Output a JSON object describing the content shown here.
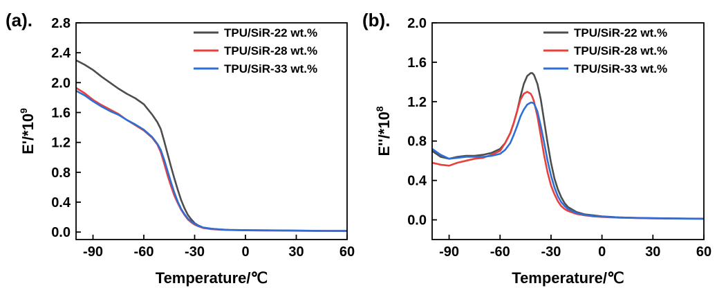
{
  "chart_data": [
    {
      "type": "line",
      "panel_label": "(a).",
      "xlabel": "Temperature/℃",
      "ylabel": "E'/*10",
      "ylabel_exp": "9",
      "xlim": [
        -100,
        60
      ],
      "ylim": [
        -0.1,
        2.8
      ],
      "xticks": [
        -90,
        -60,
        -30,
        0,
        30,
        60
      ],
      "yticks": [
        0.0,
        0.4,
        0.8,
        1.2,
        1.6,
        2.0,
        2.4,
        2.8
      ],
      "xticklabels": [
        "-90",
        "-60",
        "-30",
        "0",
        "30",
        "60"
      ],
      "yticklabels": [
        "0.0",
        "0.4",
        "0.8",
        "1.2",
        "1.6",
        "2.0",
        "2.4",
        "2.8"
      ],
      "legend_position": "top-right",
      "series": [
        {
          "name": "TPU/SiR-22 wt.%",
          "color": "#4d4d4d",
          "x": [
            -100,
            -95,
            -90,
            -85,
            -80,
            -75,
            -70,
            -65,
            -60,
            -55,
            -52,
            -50,
            -48,
            -46,
            -44,
            -42,
            -40,
            -38,
            -36,
            -34,
            -32,
            -30,
            -28,
            -25,
            -20,
            -15,
            -10,
            -5,
            0,
            10,
            20,
            30,
            40,
            50,
            60
          ],
          "y": [
            2.3,
            2.24,
            2.17,
            2.08,
            2.0,
            1.92,
            1.85,
            1.79,
            1.71,
            1.57,
            1.47,
            1.38,
            1.22,
            1.05,
            0.88,
            0.72,
            0.57,
            0.43,
            0.32,
            0.23,
            0.17,
            0.12,
            0.09,
            0.06,
            0.045,
            0.035,
            0.03,
            0.028,
            0.026,
            0.024,
            0.022,
            0.02,
            0.018,
            0.016,
            0.015
          ]
        },
        {
          "name": "TPU/SiR-28 wt.%",
          "color": "#e8413c",
          "x": [
            -100,
            -95,
            -90,
            -85,
            -80,
            -75,
            -70,
            -65,
            -60,
            -55,
            -52,
            -50,
            -48,
            -46,
            -44,
            -42,
            -40,
            -38,
            -36,
            -34,
            -32,
            -30,
            -28,
            -25,
            -20,
            -15,
            -10,
            -5,
            0,
            10,
            20,
            30,
            40,
            50,
            60
          ],
          "y": [
            1.93,
            1.86,
            1.77,
            1.7,
            1.64,
            1.58,
            1.5,
            1.43,
            1.36,
            1.26,
            1.17,
            1.07,
            0.92,
            0.76,
            0.62,
            0.49,
            0.39,
            0.3,
            0.23,
            0.17,
            0.13,
            0.1,
            0.08,
            0.055,
            0.04,
            0.032,
            0.028,
            0.025,
            0.023,
            0.021,
            0.02,
            0.018,
            0.016,
            0.015,
            0.014
          ]
        },
        {
          "name": "TPU/SiR-33 wt.%",
          "color": "#2e6fd6",
          "x": [
            -100,
            -95,
            -90,
            -85,
            -80,
            -75,
            -70,
            -65,
            -60,
            -55,
            -52,
            -50,
            -48,
            -46,
            -44,
            -42,
            -40,
            -38,
            -36,
            -34,
            -32,
            -30,
            -28,
            -25,
            -20,
            -15,
            -10,
            -5,
            0,
            10,
            20,
            30,
            40,
            50,
            60
          ],
          "y": [
            1.89,
            1.83,
            1.75,
            1.68,
            1.62,
            1.57,
            1.5,
            1.44,
            1.37,
            1.27,
            1.18,
            1.1,
            0.97,
            0.82,
            0.67,
            0.53,
            0.41,
            0.31,
            0.24,
            0.18,
            0.14,
            0.11,
            0.085,
            0.06,
            0.045,
            0.035,
            0.03,
            0.027,
            0.024,
            0.022,
            0.02,
            0.019,
            0.017,
            0.016,
            0.015
          ]
        }
      ]
    },
    {
      "type": "line",
      "panel_label": "(b).",
      "xlabel": "Temperature/℃",
      "ylabel": "E''/*10",
      "ylabel_exp": "8",
      "xlim": [
        -100,
        60
      ],
      "ylim": [
        -0.2,
        2.0
      ],
      "xticks": [
        -90,
        -60,
        -30,
        0,
        30,
        60
      ],
      "yticks": [
        0.0,
        0.4,
        0.8,
        1.2,
        1.6,
        2.0
      ],
      "xticklabels": [
        "-90",
        "-60",
        "-30",
        "0",
        "30",
        "60"
      ],
      "yticklabels": [
        "0.0",
        "0.4",
        "0.8",
        "1.2",
        "1.6",
        "2.0"
      ],
      "legend_position": "top-right",
      "series": [
        {
          "name": "TPU/SiR-22 wt.%",
          "color": "#4d4d4d",
          "x": [
            -100,
            -95,
            -90,
            -85,
            -80,
            -75,
            -70,
            -65,
            -60,
            -57,
            -54,
            -52,
            -50,
            -48,
            -46,
            -44,
            -42,
            -41,
            -40,
            -38,
            -36,
            -34,
            -32,
            -30,
            -28,
            -26,
            -24,
            -22,
            -20,
            -15,
            -10,
            -5,
            0,
            10,
            20,
            30,
            40,
            50,
            60
          ],
          "y": [
            0.7,
            0.64,
            0.62,
            0.64,
            0.65,
            0.65,
            0.66,
            0.68,
            0.72,
            0.78,
            0.88,
            0.98,
            1.1,
            1.25,
            1.38,
            1.46,
            1.49,
            1.49,
            1.47,
            1.38,
            1.22,
            1.0,
            0.78,
            0.58,
            0.42,
            0.31,
            0.23,
            0.17,
            0.13,
            0.08,
            0.055,
            0.045,
            0.035,
            0.025,
            0.02,
            0.018,
            0.015,
            0.013,
            0.012
          ]
        },
        {
          "name": "TPU/SiR-28 wt.%",
          "color": "#e8413c",
          "x": [
            -100,
            -95,
            -90,
            -85,
            -80,
            -75,
            -70,
            -65,
            -60,
            -57,
            -54,
            -52,
            -50,
            -48,
            -46,
            -44,
            -42,
            -41,
            -40,
            -38,
            -36,
            -34,
            -32,
            -30,
            -28,
            -26,
            -24,
            -22,
            -20,
            -15,
            -10,
            -5,
            0,
            10,
            20,
            30,
            40,
            50,
            60
          ],
          "y": [
            0.58,
            0.56,
            0.55,
            0.58,
            0.6,
            0.62,
            0.63,
            0.66,
            0.7,
            0.78,
            0.88,
            0.98,
            1.1,
            1.22,
            1.28,
            1.3,
            1.28,
            1.25,
            1.2,
            1.05,
            0.85,
            0.65,
            0.48,
            0.35,
            0.26,
            0.19,
            0.14,
            0.11,
            0.09,
            0.06,
            0.045,
            0.035,
            0.03,
            0.022,
            0.018,
            0.015,
            0.013,
            0.012,
            0.011
          ]
        },
        {
          "name": "TPU/SiR-33 wt.%",
          "color": "#2e6fd6",
          "x": [
            -100,
            -95,
            -90,
            -85,
            -80,
            -75,
            -70,
            -65,
            -60,
            -57,
            -54,
            -52,
            -50,
            -48,
            -46,
            -44,
            -42,
            -41,
            -40,
            -38,
            -36,
            -34,
            -32,
            -30,
            -28,
            -26,
            -24,
            -22,
            -20,
            -15,
            -10,
            -5,
            0,
            10,
            20,
            30,
            40,
            50,
            60
          ],
          "y": [
            0.72,
            0.66,
            0.62,
            0.63,
            0.64,
            0.64,
            0.64,
            0.65,
            0.67,
            0.71,
            0.78,
            0.86,
            0.95,
            1.05,
            1.12,
            1.17,
            1.19,
            1.19,
            1.18,
            1.1,
            0.95,
            0.78,
            0.6,
            0.45,
            0.33,
            0.24,
            0.18,
            0.14,
            0.11,
            0.07,
            0.05,
            0.04,
            0.032,
            0.024,
            0.019,
            0.016,
            0.014,
            0.012,
            0.011
          ]
        }
      ]
    }
  ]
}
